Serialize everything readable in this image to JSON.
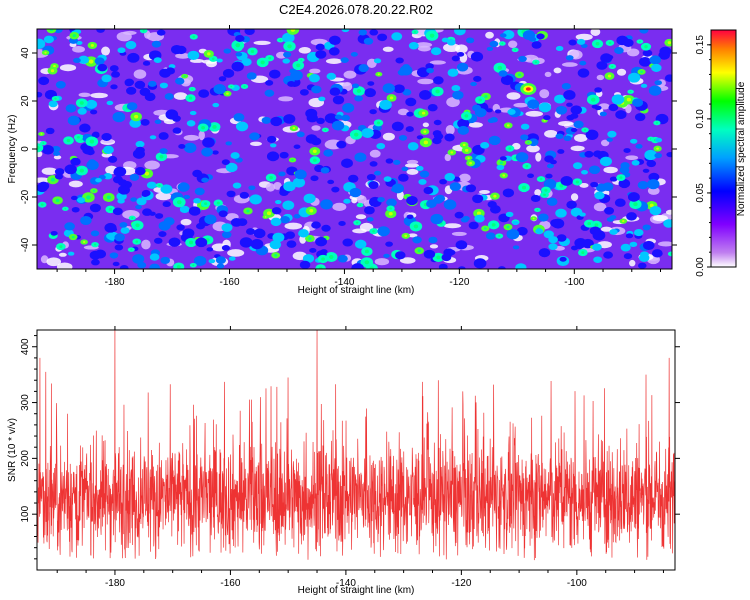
{
  "title": "C2E4.2026.078.20.22.R02",
  "colorbar": {
    "label": "Normalized spectral amplitude",
    "ticks": [
      "0.00",
      "0.05",
      "0.10",
      "0.15"
    ],
    "tick_values": [
      0.0,
      0.05,
      0.1,
      0.15
    ],
    "range": [
      0.0,
      0.16
    ]
  },
  "colors": {
    "snr_line": "#ee3333",
    "axis": "#000000",
    "background": "#ffffff"
  },
  "chart_data": [
    {
      "type": "heatmap",
      "title": "C2E4.2026.078.20.22.R02",
      "xlabel": "Height of straight line (km)",
      "ylabel": "Frequency (Hz)",
      "xlim": [
        -193.5,
        -83
      ],
      "ylim": [
        -50,
        50
      ],
      "xticks": [
        -180,
        -160,
        -140,
        -120,
        -100
      ],
      "yticks": [
        -40,
        -20,
        0,
        20,
        40
      ],
      "xtick_labels": [
        "-180",
        "-160",
        "-140",
        "-120",
        "-100"
      ],
      "ytick_labels": [
        "-40",
        "-20",
        "0",
        "20",
        "40"
      ],
      "colormap": "rainbow (purple-blue-cyan-green-yellow-red)",
      "value_range": [
        0.0,
        0.16
      ],
      "note": "Dense speckle of spectral peaks across the full frequency band; maximum near x=-108 km, y=25 Hz (~0.16)"
    },
    {
      "type": "line",
      "xlabel": "Height of straight line (km)",
      "ylabel": "SNR (10 * v/v)",
      "xlim": [
        -193.5,
        -83
      ],
      "ylim": [
        0,
        430
      ],
      "xticks": [
        -180,
        -160,
        -140,
        -120,
        -100
      ],
      "yticks": [
        100,
        200,
        300,
        400
      ],
      "xtick_labels": [
        "-180",
        "-160",
        "-140",
        "-120",
        "-100"
      ],
      "ytick_labels": [
        "100",
        "200",
        "300",
        "400"
      ],
      "series": [
        {
          "name": "SNR",
          "color": "#ee3333",
          "mean": 130,
          "typical_range": [
            30,
            260
          ],
          "peaks": [
            {
              "x": -180,
              "y": 430
            },
            {
              "x": -145,
              "y": 430
            },
            {
              "x": -193,
              "y": 380
            },
            {
              "x": -84,
              "y": 380
            },
            {
              "x": -192,
              "y": 355
            },
            {
              "x": -150,
              "y": 345
            },
            {
              "x": -124,
              "y": 340
            },
            {
              "x": -88,
              "y": 350
            }
          ]
        }
      ]
    }
  ]
}
